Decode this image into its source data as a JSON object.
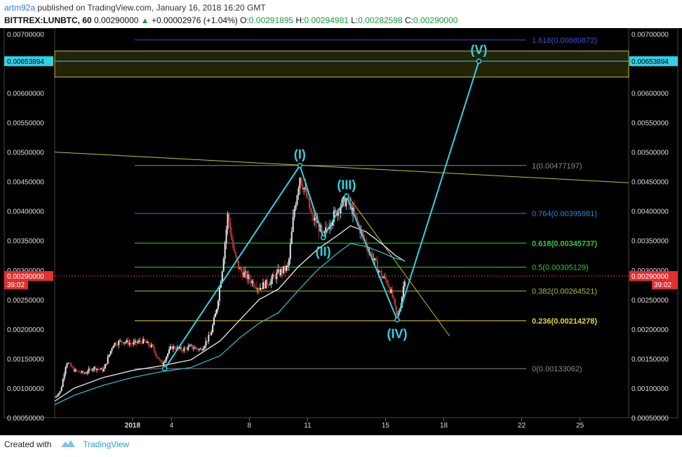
{
  "header": {
    "author": "artm92a",
    "published_text": "published on TradingView.com, January 16, 2018 16:20 GMT",
    "symbol": "BITTREX:LUNBTC, 60",
    "price": "0.00290000",
    "change_arrow": "▲",
    "change": "+0.00002976 (+1.04%)",
    "o_label": "O:",
    "o_value": "0.00291895",
    "h_label": "H:",
    "h_value": "0.00294981",
    "l_label": "L:",
    "l_value": "0.00282598",
    "c_label": "C:",
    "c_value": "0.00290000"
  },
  "footer": {
    "created_with": "Created with",
    "brand": "TradingView"
  },
  "colors": {
    "background": "#000000",
    "candle_up": "#e8e8e8",
    "candle_down": "#c0392b",
    "wave": "#2fd3e6",
    "ma_white": "#e8e8e8",
    "ma_cyan": "#2bb5c8",
    "trendline": "#c8c030",
    "zone": "#3a3a10",
    "price_marker": "#e03030",
    "highlight_marker": "#2fd3e6"
  },
  "chart_data": {
    "type": "candlestick",
    "title": "",
    "xlabel": "",
    "ylabel": "",
    "grid": false,
    "ylim": [
      0.0005,
      0.0071
    ],
    "y_axis_ticks": [
      "0.00700000",
      "0.00650000",
      "0.00600000",
      "0.00550000",
      "0.00500000",
      "0.00450000",
      "0.00400000",
      "0.00350000",
      "0.00300000",
      "0.00250000",
      "0.00200000",
      "0.00150000",
      "0.00100000",
      "0.00050000"
    ],
    "x_axis_ticks": [
      {
        "t": 4.0,
        "label": "2018"
      },
      {
        "t": 6.0,
        "label": "4"
      },
      {
        "t": 10.0,
        "label": "8"
      },
      {
        "t": 13.0,
        "label": "11"
      },
      {
        "t": 17.0,
        "label": "15"
      },
      {
        "t": 20.0,
        "label": "18"
      },
      {
        "t": 24.0,
        "label": "22"
      },
      {
        "t": 27.0,
        "label": "25"
      }
    ],
    "price_path": [
      [
        0.0,
        0.00085
      ],
      [
        0.3,
        0.00095
      ],
      [
        0.6,
        0.00145
      ],
      [
        1.0,
        0.0013
      ],
      [
        1.5,
        0.00125
      ],
      [
        2.0,
        0.00135
      ],
      [
        2.5,
        0.0013
      ],
      [
        3.0,
        0.00175
      ],
      [
        3.5,
        0.0018
      ],
      [
        4.0,
        0.00175
      ],
      [
        4.5,
        0.0018
      ],
      [
        5.0,
        0.0017
      ],
      [
        5.5,
        0.0014
      ],
      [
        6.0,
        0.0017
      ],
      [
        6.5,
        0.00165
      ],
      [
        7.0,
        0.0017
      ],
      [
        7.5,
        0.00165
      ],
      [
        8.0,
        0.0019
      ],
      [
        8.3,
        0.0023
      ],
      [
        8.6,
        0.003
      ],
      [
        8.9,
        0.00395
      ],
      [
        9.2,
        0.0033
      ],
      [
        9.5,
        0.003
      ],
      [
        10.0,
        0.00285
      ],
      [
        10.5,
        0.0027
      ],
      [
        11.0,
        0.0028
      ],
      [
        11.5,
        0.00295
      ],
      [
        12.0,
        0.00305
      ],
      [
        12.3,
        0.004
      ],
      [
        12.6,
        0.0046
      ],
      [
        12.9,
        0.0043
      ],
      [
        13.2,
        0.0039
      ],
      [
        13.5,
        0.0038
      ],
      [
        13.8,
        0.00355
      ],
      [
        14.1,
        0.0038
      ],
      [
        14.4,
        0.00395
      ],
      [
        14.7,
        0.0041
      ],
      [
        15.0,
        0.0042
      ],
      [
        15.3,
        0.004
      ],
      [
        15.6,
        0.00375
      ],
      [
        15.9,
        0.0035
      ],
      [
        16.2,
        0.0033
      ],
      [
        16.5,
        0.0031
      ],
      [
        16.8,
        0.0029
      ],
      [
        17.1,
        0.0028
      ],
      [
        17.4,
        0.0025
      ],
      [
        17.6,
        0.00218
      ],
      [
        17.8,
        0.00245
      ],
      [
        18.0,
        0.0029
      ]
    ],
    "moving_averages": [
      {
        "color_key": "ma_white",
        "points": [
          [
            0.0,
            0.00078
          ],
          [
            1.0,
            0.001
          ],
          [
            2.5,
            0.00118
          ],
          [
            4.0,
            0.0013
          ],
          [
            5.5,
            0.00138
          ],
          [
            7.0,
            0.00148
          ],
          [
            8.5,
            0.0018
          ],
          [
            9.5,
            0.00215
          ],
          [
            10.5,
            0.0025
          ],
          [
            11.5,
            0.00268
          ],
          [
            12.5,
            0.00305
          ],
          [
            13.5,
            0.00335
          ],
          [
            14.5,
            0.00358
          ],
          [
            15.2,
            0.00375
          ],
          [
            16.0,
            0.00365
          ],
          [
            16.8,
            0.00345
          ],
          [
            17.5,
            0.00325
          ],
          [
            18.0,
            0.00315
          ]
        ]
      },
      {
        "color_key": "ma_cyan",
        "points": [
          [
            0.0,
            0.00072
          ],
          [
            1.0,
            0.00088
          ],
          [
            2.5,
            0.00105
          ],
          [
            4.0,
            0.00118
          ],
          [
            5.5,
            0.00128
          ],
          [
            7.0,
            0.00135
          ],
          [
            8.5,
            0.00155
          ],
          [
            9.5,
            0.00185
          ],
          [
            10.5,
            0.0021
          ],
          [
            11.5,
            0.00228
          ],
          [
            12.5,
            0.00265
          ],
          [
            13.5,
            0.003
          ],
          [
            14.5,
            0.00328
          ],
          [
            15.2,
            0.00345
          ],
          [
            16.0,
            0.0034
          ],
          [
            16.8,
            0.0033
          ],
          [
            17.5,
            0.0032
          ],
          [
            18.0,
            0.00316
          ]
        ]
      }
    ],
    "waves": [
      {
        "t": 5.65,
        "y": 0.00133062,
        "label": ""
      },
      {
        "t": 12.6,
        "y": 0.00477197,
        "label": "(I)"
      },
      {
        "t": 13.8,
        "y": 0.00355,
        "label": "(II)"
      },
      {
        "t": 15.0,
        "y": 0.00425,
        "label": "(III)"
      },
      {
        "t": 17.6,
        "y": 0.00216,
        "label": "(IV)"
      },
      {
        "t": 21.8,
        "y": 0.00653894,
        "label": "(V)"
      }
    ],
    "fib_levels": [
      {
        "ratio": "1.618",
        "value": "0.00689872",
        "y": 0.00689872,
        "color": "#4a4ad8"
      },
      {
        "ratio": "1",
        "value": "0.00477197",
        "y": 0.00477197,
        "color": "#8a8a8a"
      },
      {
        "ratio": "0.764",
        "value": "0.00395981",
        "y": 0.00395981,
        "color": "#2a8ad8"
      },
      {
        "ratio": "0.618",
        "value": "0.00345737",
        "y": 0.00345737,
        "color": "#33cc33"
      },
      {
        "ratio": "0.5",
        "value": "0.00305129",
        "y": 0.00305129,
        "color": "#33cc33"
      },
      {
        "ratio": "0.382",
        "value": "0.00264521",
        "y": 0.00264521,
        "color": "#a8c040"
      },
      {
        "ratio": "0.236",
        "value": "0.00214278",
        "y": 0.00214278,
        "color": "#e8d830"
      },
      {
        "ratio": "0",
        "value": "0.00133062",
        "y": 0.00133062,
        "color": "#8a8a8a"
      }
    ],
    "zone": {
      "top": 0.00671,
      "bottom": 0.00627
    },
    "trendlines": [
      {
        "from": [
          0.0,
          0.005
        ],
        "to": [
          29.5,
          0.00448
        ]
      },
      {
        "from": [
          15.2,
          0.0042
        ],
        "to": [
          20.3,
          0.00188
        ]
      }
    ],
    "price_markers": [
      {
        "value": "0.00653894",
        "y": 0.00653894,
        "side": "both",
        "style": "highlight"
      },
      {
        "value": "0.00290000",
        "y": 0.0029,
        "side": "both",
        "style": "price"
      }
    ],
    "countdown": "39:02"
  }
}
